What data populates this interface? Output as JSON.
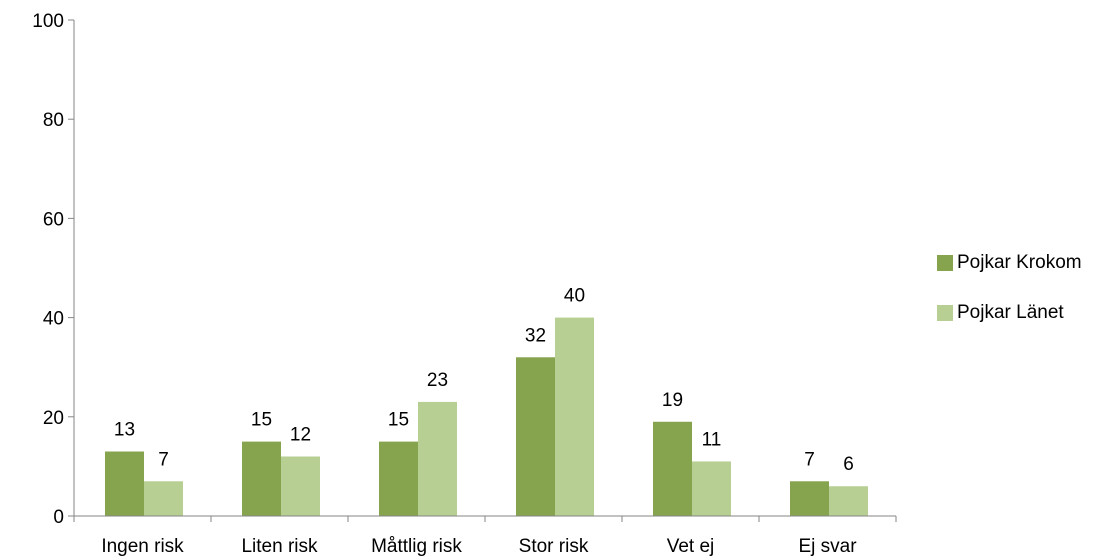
{
  "chart_data": {
    "type": "bar",
    "title": "",
    "xlabel": "",
    "ylabel": "",
    "ylim": [
      0,
      100
    ],
    "yticks": [
      0,
      20,
      40,
      60,
      80,
      100
    ],
    "categories": [
      "Ingen risk",
      "Liten risk",
      "Måttlig risk",
      "Stor risk",
      "Vet ej",
      "Ej svar"
    ],
    "series": [
      {
        "name": "Pojkar Krokom",
        "values": [
          13,
          15,
          15,
          32,
          19,
          7
        ],
        "color": "#86a34e"
      },
      {
        "name": "Pojkar Länet",
        "values": [
          7,
          12,
          23,
          40,
          11,
          6
        ],
        "color": "#b8cf93"
      }
    ],
    "legend_position": "right",
    "grid": false,
    "data_labels": true
  }
}
